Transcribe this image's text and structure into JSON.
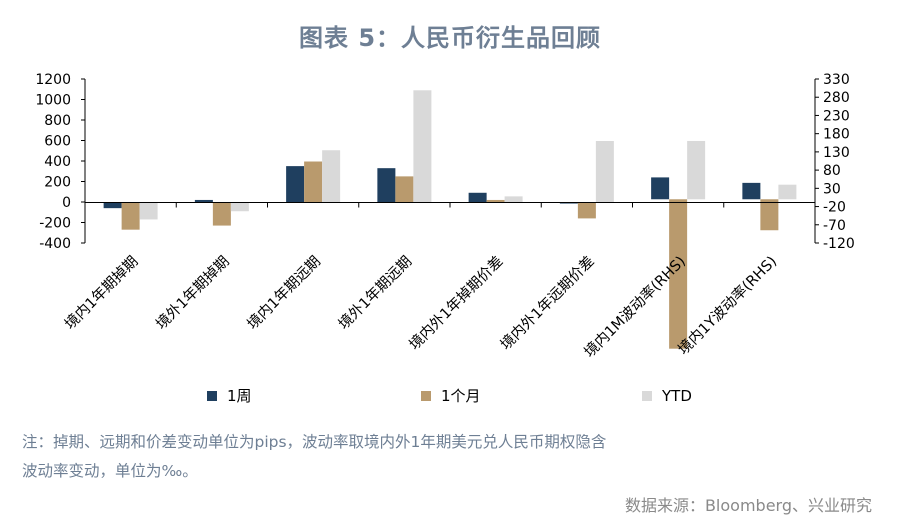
{
  "title": "图表 5：人民币衍生品回顾",
  "note": {
    "line1": "注：掉期、远期和价差变动单位为pips，波动率取境内外1年期美元兑人民币期权隐含",
    "line2": "波动率变动，单位为‰。"
  },
  "source": "数据来源：Bloomberg、兴业研究",
  "chart_data": {
    "type": "bar",
    "categories": [
      "境内1年期掉期",
      "境外1年期掉期",
      "境内1年期远期",
      "境外1年期远期",
      "境内外1年掉期价差",
      "境内外1年远期价差",
      "境内1M波动率(RHS)",
      "境内1Y波动率(RHS)"
    ],
    "series": [
      {
        "name": "1周",
        "color": "#1f3f5f",
        "values": [
          -60,
          20,
          350,
          330,
          90,
          -15,
          60,
          45
        ]
      },
      {
        "name": "1个月",
        "color": "#b99a6d",
        "values": [
          -270,
          -230,
          395,
          250,
          20,
          -160,
          -410,
          -85
        ]
      },
      {
        "name": "YTD",
        "color": "#d9d9d9",
        "values": [
          -170,
          -90,
          505,
          1090,
          55,
          595,
          160,
          40
        ]
      }
    ],
    "secondary_series_from_category_index": 6,
    "y_left": {
      "min": -400,
      "max": 1200,
      "ticks": [
        -400,
        -200,
        0,
        200,
        400,
        600,
        800,
        1000,
        1200
      ],
      "tick_labels": [
        "-400",
        "-200",
        "0",
        "200",
        "400",
        "600",
        "800",
        "1000",
        "1200"
      ]
    },
    "y_right": {
      "min": -120,
      "max": 330,
      "ticks": [
        -120,
        -70,
        -20,
        30,
        80,
        130,
        180,
        230,
        280,
        330
      ],
      "tick_labels": [
        "-120",
        "-70",
        "-20",
        "30",
        "80",
        "130",
        "180",
        "230",
        "280",
        "330"
      ]
    },
    "legend_position": "bottom",
    "grid": false
  }
}
